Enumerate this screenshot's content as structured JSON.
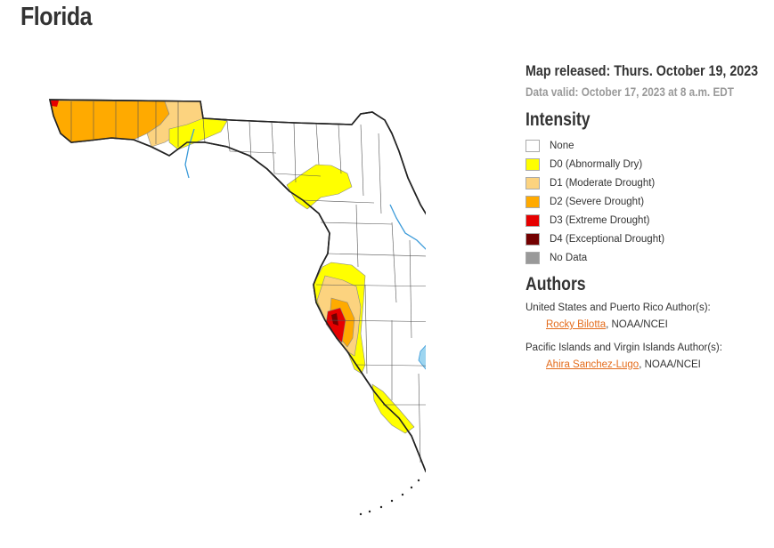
{
  "title": "Florida",
  "released": "Map released: Thurs. October 19, 2023",
  "valid": "Data valid: October 17, 2023 at 8 a.m. EDT",
  "intensity": {
    "heading": "Intensity",
    "items": [
      {
        "label": "None",
        "color": "#ffffff"
      },
      {
        "label": "D0 (Abnormally Dry)",
        "color": "#ffff00"
      },
      {
        "label": "D1 (Moderate Drought)",
        "color": "#fcd37f"
      },
      {
        "label": "D2 (Severe Drought)",
        "color": "#ffaa00"
      },
      {
        "label": "D3 (Extreme Drought)",
        "color": "#e60000"
      },
      {
        "label": "D4 (Exceptional Drought)",
        "color": "#730000"
      },
      {
        "label": "No Data",
        "color": "#999999"
      }
    ]
  },
  "authors": {
    "heading": "Authors",
    "groups": [
      {
        "label": "United States and Puerto Rico Author(s):",
        "name": "Rocky Bilotta",
        "org": ", NOAA/NCEI"
      },
      {
        "label": "Pacific Islands and Virgin Islands Author(s):",
        "name": "Ahira Sanchez-Lugo",
        "org": ", NOAA/NCEI"
      }
    ]
  },
  "map_colors": {
    "water": "#9dd5f0",
    "river": "#3a9ad9",
    "outline": "#222222",
    "county": "#555555"
  }
}
